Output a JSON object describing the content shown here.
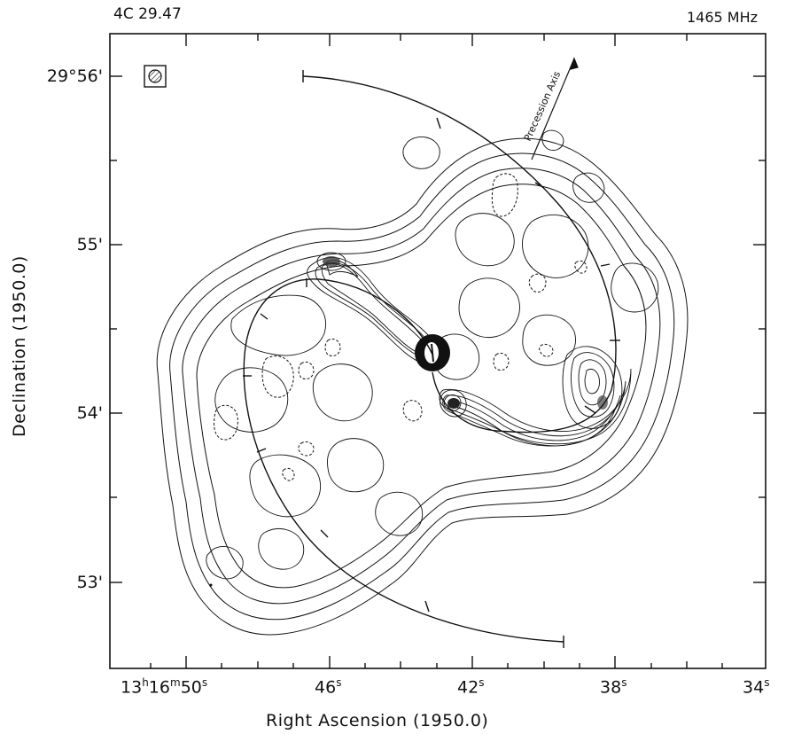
{
  "chart_data": {
    "type": "contour",
    "title_left": "4C 29.47",
    "title_right": "1465 MHz",
    "xlabel": "Right Ascension (1950.0)",
    "ylabel": "Declination (1950.0)",
    "x_ticks": [
      {
        "h": "13",
        "m": "16",
        "s": "50",
        "label": "13h16m50s"
      },
      {
        "s": "46",
        "label": "46s"
      },
      {
        "s": "42",
        "label": "42s"
      },
      {
        "s": "38",
        "label": "38s"
      },
      {
        "s": "34",
        "label": "34s"
      }
    ],
    "y_ticks": [
      {
        "value": "56",
        "label": "29°56'"
      },
      {
        "value": "55",
        "label": "55'"
      },
      {
        "value": "54",
        "label": "54'"
      },
      {
        "value": "53",
        "label": "53'"
      }
    ],
    "xlim_seconds": [
      52.0,
      34.0
    ],
    "ylim_arcmin": [
      52.6,
      56.25
    ],
    "annotation": "Precession Axis",
    "features": {
      "core": {
        "ra_s": 43.3,
        "dec_arcmin": 54.35
      },
      "north_hotspot": {
        "ra_s": 45.9,
        "dec_arcmin": 54.9
      },
      "south_hotspot": {
        "ra_s": 42.7,
        "dec_arcmin": 54.05
      },
      "west_hotspot": {
        "ra_s": 38.4,
        "dec_arcmin": 54.0
      }
    },
    "beam_marker": "hatched-circle",
    "colors": {
      "ink": "#111111",
      "background": "#ffffff"
    }
  }
}
